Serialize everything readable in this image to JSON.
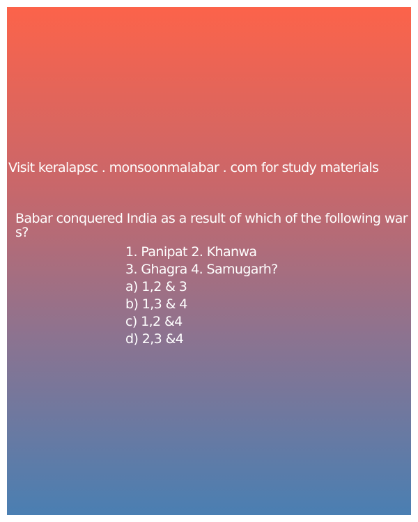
{
  "header": {
    "text": "Visit keralapsc . monsoonmalabar . com for study materials"
  },
  "question": {
    "text": "Babar conquered India as a result of which of the following wars?",
    "lines": [
      "1. Panipat 2. Khanwa",
      "3. Ghagra 4. Samugarh?",
      "a) 1,2 & 3",
      "b) 1,3 & 4",
      "c) 1,2 &4",
      "d) 2,3 &4"
    ]
  }
}
